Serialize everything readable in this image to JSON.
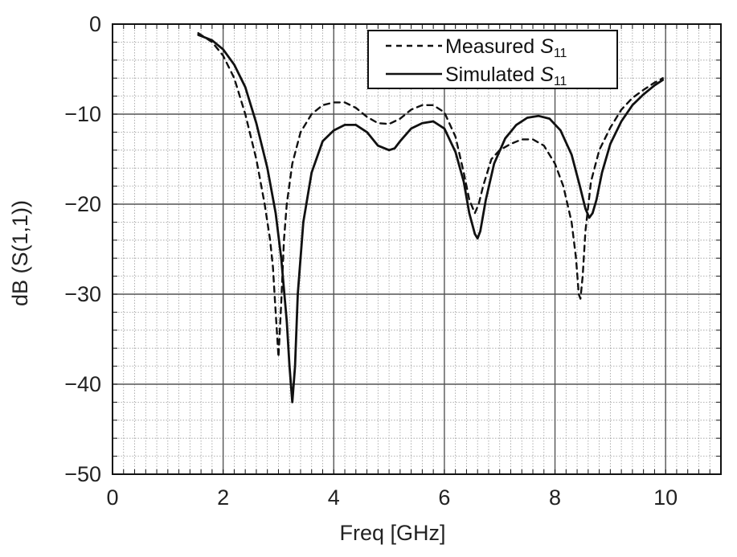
{
  "chart_data": {
    "type": "line",
    "title": "",
    "xlabel": "Freq [GHz]",
    "ylabel": "dB (S(1,1))",
    "xlim": [
      0,
      11
    ],
    "ylim": [
      -50,
      0
    ],
    "x_ticks": [
      0,
      2,
      4,
      6,
      8,
      10
    ],
    "y_ticks": [
      0,
      -10,
      -20,
      -30,
      -40,
      -50
    ],
    "grid": "major solid, minor dotted",
    "legend_position": "top-right",
    "series": [
      {
        "name": "Measured S11",
        "legend_main": "Measured ",
        "legend_sym": "S",
        "legend_sub": "11",
        "style": "dashed",
        "color": "#111111",
        "x": [
          1.55,
          1.8,
          2.0,
          2.2,
          2.4,
          2.6,
          2.75,
          2.85,
          2.9,
          2.93,
          2.97,
          3.0,
          3.05,
          3.1,
          3.15,
          3.25,
          3.4,
          3.6,
          3.8,
          4.0,
          4.2,
          4.4,
          4.6,
          4.8,
          5.0,
          5.2,
          5.4,
          5.6,
          5.8,
          6.0,
          6.2,
          6.35,
          6.45,
          6.55,
          6.62,
          6.7,
          6.85,
          7.0,
          7.2,
          7.4,
          7.6,
          7.8,
          8.0,
          8.15,
          8.3,
          8.38,
          8.43,
          8.46,
          8.5,
          8.55,
          8.65,
          8.8,
          9.0,
          9.2,
          9.4,
          9.6,
          9.8,
          9.95
        ],
        "y": [
          -1.0,
          -2.0,
          -3.5,
          -6.0,
          -10.0,
          -15.0,
          -20.0,
          -24.0,
          -27.0,
          -30.0,
          -34.0,
          -37.0,
          -31.0,
          -24.0,
          -20.0,
          -15.5,
          -12.0,
          -10.0,
          -9.0,
          -8.7,
          -8.7,
          -9.3,
          -10.3,
          -11.0,
          -11.1,
          -10.5,
          -9.5,
          -9.0,
          -9.0,
          -9.8,
          -12.5,
          -16.5,
          -19.5,
          -21.0,
          -20.0,
          -18.0,
          -15.0,
          -14.0,
          -13.3,
          -12.8,
          -12.8,
          -13.5,
          -15.5,
          -18.0,
          -22.0,
          -26.0,
          -30.0,
          -30.5,
          -28.0,
          -23.0,
          -17.5,
          -14.0,
          -11.5,
          -9.5,
          -8.2,
          -7.3,
          -6.5,
          -6.0
        ]
      },
      {
        "name": "Simulated S11",
        "legend_main": "Simulated ",
        "legend_sym": "S",
        "legend_sub": "11",
        "style": "solid",
        "color": "#111111",
        "x": [
          1.55,
          1.8,
          2.0,
          2.2,
          2.4,
          2.6,
          2.8,
          2.95,
          3.05,
          3.15,
          3.2,
          3.25,
          3.3,
          3.35,
          3.45,
          3.6,
          3.8,
          4.0,
          4.2,
          4.4,
          4.6,
          4.8,
          5.0,
          5.1,
          5.2,
          5.4,
          5.6,
          5.8,
          6.0,
          6.2,
          6.35,
          6.45,
          6.55,
          6.6,
          6.65,
          6.75,
          6.9,
          7.1,
          7.3,
          7.5,
          7.7,
          7.9,
          8.1,
          8.3,
          8.45,
          8.55,
          8.62,
          8.68,
          8.75,
          8.85,
          9.0,
          9.2,
          9.4,
          9.6,
          9.8,
          9.95
        ],
        "y": [
          -1.2,
          -1.8,
          -2.8,
          -4.5,
          -7.0,
          -11.0,
          -16.0,
          -21.0,
          -26.0,
          -33.0,
          -38.0,
          -42.0,
          -38.0,
          -30.0,
          -22.0,
          -16.5,
          -13.0,
          -11.8,
          -11.2,
          -11.2,
          -12.0,
          -13.5,
          -14.0,
          -13.8,
          -13.0,
          -11.6,
          -11.0,
          -10.8,
          -11.6,
          -14.2,
          -17.5,
          -21.0,
          -23.3,
          -23.8,
          -23.0,
          -19.5,
          -15.5,
          -12.7,
          -11.2,
          -10.4,
          -10.2,
          -10.5,
          -11.8,
          -14.5,
          -18.0,
          -20.5,
          -21.5,
          -21.0,
          -19.5,
          -16.5,
          -13.3,
          -10.8,
          -9.0,
          -7.8,
          -6.8,
          -6.2
        ]
      }
    ]
  }
}
